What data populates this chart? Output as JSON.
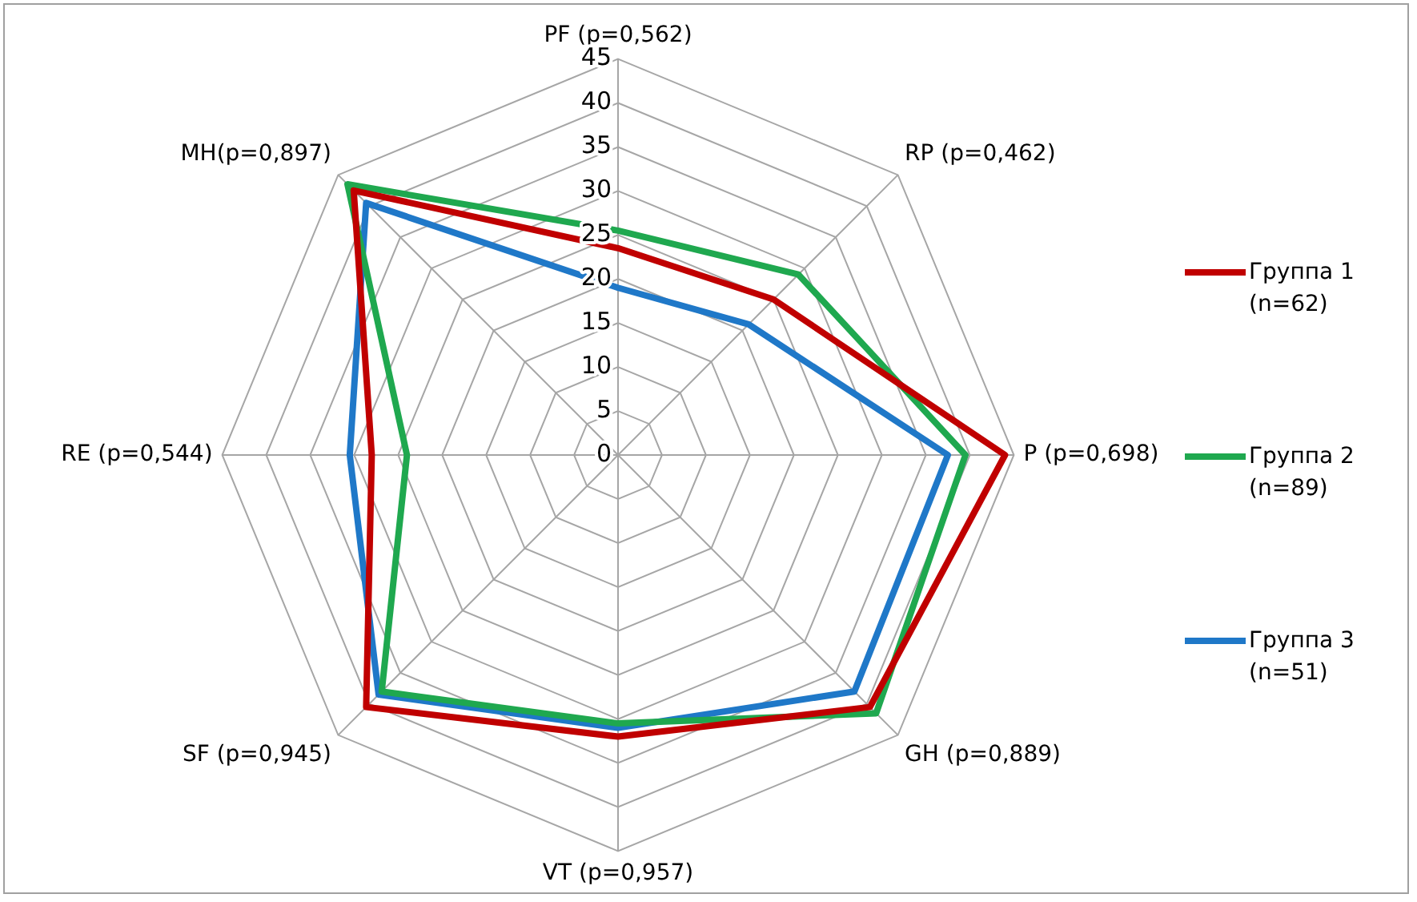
{
  "chart_data": {
    "type": "radar",
    "categories": [
      "PF (p=0,562)",
      "RP (p=0,462)",
      "P (p=0,698)",
      "GH (p=0,889)",
      "VT (p=0,957)",
      "SF (p=0,945)",
      "RE (p=0,544)",
      "MH(p=0,897)"
    ],
    "series": [
      {
        "name": "Группа 1 (n=62)",
        "color": "#c00000",
        "values": [
          23.5,
          25,
          44,
          40.5,
          32,
          40.5,
          28,
          42.5
        ]
      },
      {
        "name": "Группа 2 (n=89)",
        "color": "#1fa84f",
        "values": [
          25.5,
          29,
          39.5,
          41.5,
          30.5,
          38,
          24,
          43.5
        ]
      },
      {
        "name": "Группа 3 (n=51)",
        "color": "#1f78c8",
        "values": [
          19,
          21,
          37.5,
          38,
          31,
          38.5,
          30.5,
          40.5
        ]
      }
    ],
    "ylim": [
      0,
      45
    ],
    "yticks": [
      0,
      5,
      10,
      15,
      20,
      25,
      30,
      35,
      40,
      45
    ],
    "grid": true,
    "legend": "right",
    "marker": "none",
    "line_style": "solid"
  }
}
